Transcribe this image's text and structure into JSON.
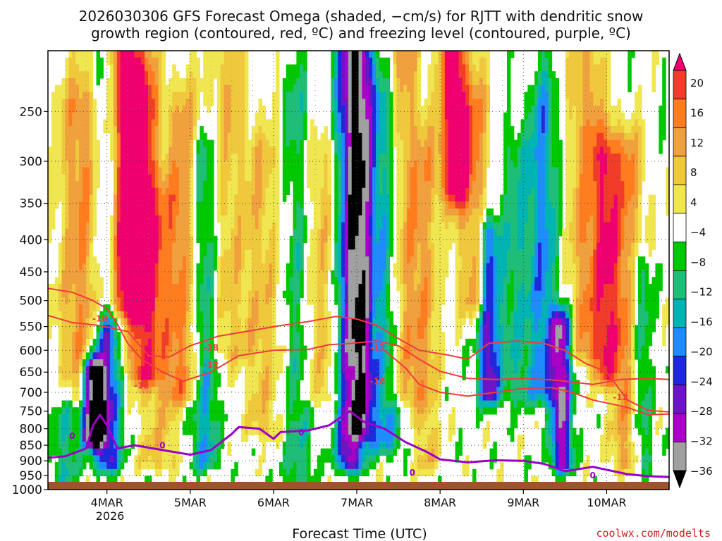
{
  "chart_data": {
    "type": "heatmap",
    "title_line1": "2026030306 GFS Forecast Omega (shaded, −cm/s) for RJTT with dendritic snow",
    "title_line2": "growth region (contoured, red, ºC) and freezing level (contoured, purple, ºC)",
    "xlabel": "Forecast Time (UTC)",
    "watermark": "coolwx.com/modelts",
    "x_ticks": [
      "4MAR",
      "5MAR",
      "6MAR",
      "7MAR",
      "8MAR",
      "9MAR",
      "10MAR"
    ],
    "x_sublabel": "2026",
    "x_range_hours": [
      -17,
      162
    ],
    "y_ticks": [
      250,
      300,
      350,
      400,
      450,
      500,
      550,
      600,
      650,
      700,
      750,
      800,
      850,
      900,
      950,
      1000
    ],
    "y_range_hpa": [
      200,
      1000
    ],
    "grid": true,
    "colorbar": {
      "labels": [
        "20",
        "16",
        "12",
        "8",
        "4",
        "−4",
        "−8",
        "−12",
        "−16",
        "−20",
        "−24",
        "−28",
        "−32",
        "−36"
      ],
      "colors": [
        "#f0006e",
        "#f03c28",
        "#ff7d1e",
        "#f0a03c",
        "#f0c83c",
        "#f0e650",
        "#ffffff",
        "#00c800",
        "#1ebe78",
        "#00b4b4",
        "#1e8cff",
        "#1e28dc",
        "#6e14c8",
        "#aa00c8",
        "#a0a0a0",
        "#000000"
      ]
    },
    "contour_labels": {
      "dgz_red": [
        "-18",
        "-12",
        "-12",
        "-18",
        "-12",
        "-18",
        "-12"
      ],
      "freezing_purple": [
        "0",
        "0",
        "0",
        "0",
        "0"
      ]
    },
    "colors": {
      "dgz": "#f03c3c",
      "freezing": "#9b00c8",
      "ground": "#a0522d",
      "grid": "#555555",
      "watermark": "#d22020"
    }
  }
}
